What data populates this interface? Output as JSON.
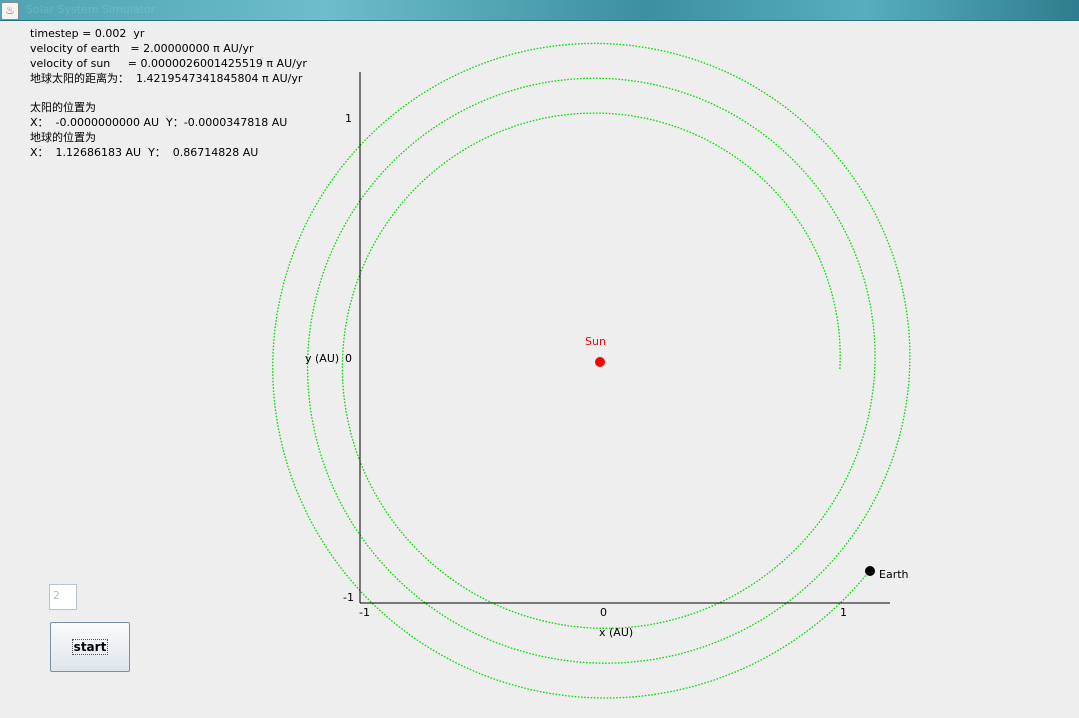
{
  "window": {
    "title": "Solar System Simulator"
  },
  "info": {
    "line1": "timestep = 0.002  yr",
    "line2": "velocity of earth   = 2.00000000 π AU/yr",
    "line3": "velocity of sun     = 0.0000026001425519 π AU/yr",
    "line4": "地球太阳的距离为：  1.4219547341845804 π AU/yr",
    "sun_heading": "太阳的位置为",
    "sun_pos": "X：  -0.0000000000 AU  Y：-0.0000347818 AU",
    "earth_heading": "地球的位置为",
    "earth_pos": "X：  1.12686183 AU  Y：  0.86714828 AU"
  },
  "plot": {
    "xlabel": "x (AU)",
    "ylabel": "y (AU)",
    "x_ticks": [
      "-1",
      "0",
      "1"
    ],
    "y_ticks": [
      "1",
      "0",
      "-1"
    ],
    "sun_label": "Sun",
    "earth_label": "Earth",
    "sun_color": "#ff0000",
    "earth_color": "#000000",
    "orbit_color": "#00dd00"
  },
  "controls": {
    "input_value": "2",
    "start_label": "start"
  }
}
